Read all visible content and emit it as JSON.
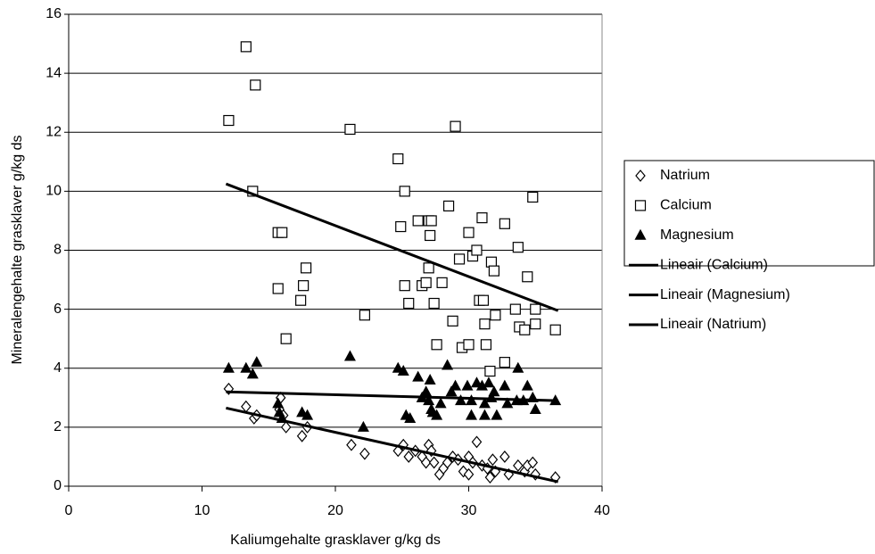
{
  "chart_data": {
    "type": "scatter",
    "xlabel": "Kaliumgehalte grasklaver g/kg ds",
    "ylabel": "Mineralengehalte grasklaver g/kg ds",
    "xlim": [
      0,
      40
    ],
    "xticks": [
      0,
      10,
      20,
      30,
      40
    ],
    "ylim": [
      0,
      16
    ],
    "yticks": [
      0,
      2,
      4,
      6,
      8,
      10,
      12,
      14,
      16
    ],
    "grid": true,
    "legend": "right",
    "series": [
      {
        "name": "Natrium",
        "mode": "markers",
        "marker": "diamond",
        "color": "#000000",
        "x": [
          12.0,
          13.3,
          13.9,
          14.1,
          15.9,
          15.8,
          16.1,
          16.3,
          17.5,
          17.9,
          21.2,
          22.2,
          24.7,
          25.1,
          25.5,
          26.0,
          26.5,
          26.8,
          27.0,
          27.2,
          27.4,
          27.8,
          28.1,
          28.4,
          28.8,
          29.2,
          29.6,
          30.0,
          30.0,
          30.3,
          30.6,
          31.0,
          31.4,
          31.6,
          31.8,
          32.0,
          32.7,
          33.0,
          33.7,
          34.2,
          34.4,
          34.8,
          35.0,
          36.5
        ],
        "values": [
          3.3,
          2.7,
          2.3,
          2.4,
          3.0,
          2.6,
          2.4,
          2.0,
          1.7,
          2.0,
          1.4,
          1.1,
          1.2,
          1.4,
          1.0,
          1.2,
          1.0,
          0.8,
          1.4,
          1.2,
          0.8,
          0.4,
          0.6,
          0.8,
          1.0,
          0.9,
          0.5,
          1.0,
          0.4,
          0.8,
          1.5,
          0.7,
          0.6,
          0.3,
          0.9,
          0.5,
          1.0,
          0.4,
          0.7,
          0.5,
          0.7,
          0.8,
          0.4,
          0.3
        ]
      },
      {
        "name": "Calcium",
        "mode": "markers",
        "marker": "square",
        "color": "#000000",
        "x": [
          12.0,
          13.3,
          14.0,
          13.8,
          15.7,
          16.0,
          15.7,
          17.6,
          17.8,
          17.4,
          16.3,
          21.1,
          22.2,
          24.7,
          24.9,
          25.2,
          25.2,
          25.5,
          26.2,
          26.5,
          26.8,
          27.0,
          27.2,
          27.1,
          27.0,
          27.4,
          27.6,
          28.0,
          28.5,
          28.8,
          29.0,
          29.3,
          29.5,
          30.0,
          30.0,
          30.3,
          30.6,
          31.0,
          30.8,
          31.1,
          31.2,
          31.3,
          31.6,
          31.7,
          31.9,
          32.0,
          32.7,
          32.7,
          33.7,
          33.5,
          33.8,
          34.2,
          34.4,
          34.8,
          35.0,
          35.0,
          36.5
        ],
        "values": [
          12.4,
          14.9,
          13.6,
          10.0,
          8.6,
          8.6,
          6.7,
          6.8,
          7.4,
          6.3,
          5.0,
          12.1,
          5.8,
          11.1,
          8.8,
          10.0,
          6.8,
          6.2,
          9.0,
          6.8,
          6.9,
          9.0,
          9.0,
          8.5,
          7.4,
          6.2,
          4.8,
          6.9,
          9.5,
          5.6,
          12.2,
          7.7,
          4.7,
          8.6,
          4.8,
          7.8,
          8.0,
          9.1,
          6.3,
          6.3,
          5.5,
          4.8,
          3.9,
          7.6,
          7.3,
          5.8,
          4.2,
          8.9,
          8.1,
          6.0,
          5.4,
          5.3,
          7.1,
          9.8,
          5.5,
          6.0,
          5.3
        ]
      },
      {
        "name": "Magnesium",
        "mode": "markers",
        "marker": "triangle",
        "color": "#000000",
        "x": [
          12.0,
          13.3,
          13.8,
          14.1,
          15.7,
          15.8,
          16.0,
          17.5,
          17.9,
          21.1,
          22.1,
          24.7,
          25.1,
          25.3,
          25.6,
          26.2,
          26.5,
          26.8,
          27.1,
          27.0,
          27.2,
          27.3,
          27.6,
          27.9,
          28.4,
          28.7,
          29.0,
          29.4,
          29.9,
          30.2,
          30.2,
          30.6,
          31.0,
          31.2,
          31.2,
          31.5,
          31.7,
          31.9,
          32.1,
          32.7,
          32.9,
          33.7,
          33.6,
          34.1,
          34.4,
          34.8,
          35.0,
          36.5
        ],
        "values": [
          4.0,
          4.0,
          3.8,
          4.2,
          2.8,
          2.5,
          2.3,
          2.5,
          2.4,
          4.4,
          2.0,
          4.0,
          3.9,
          2.4,
          2.3,
          3.7,
          3.0,
          3.2,
          3.6,
          2.9,
          2.6,
          2.5,
          2.4,
          2.8,
          4.1,
          3.2,
          3.4,
          2.9,
          3.4,
          2.9,
          2.4,
          3.5,
          3.4,
          2.8,
          2.4,
          3.5,
          3.0,
          3.2,
          2.4,
          3.4,
          2.8,
          4.0,
          2.9,
          2.9,
          3.4,
          3.0,
          2.6,
          2.9
        ]
      },
      {
        "name": "Lineair (Calcium)",
        "mode": "line",
        "color": "#000000",
        "x": [
          11.8,
          36.7
        ],
        "values": [
          10.25,
          5.95
        ]
      },
      {
        "name": "Lineair (Magnesium)",
        "mode": "line",
        "color": "#000000",
        "x": [
          11.8,
          36.7
        ],
        "values": [
          3.2,
          2.9
        ]
      },
      {
        "name": "Lineair (Natrium)",
        "mode": "line",
        "color": "#000000",
        "x": [
          11.8,
          36.7
        ],
        "values": [
          2.65,
          0.15
        ]
      }
    ]
  }
}
